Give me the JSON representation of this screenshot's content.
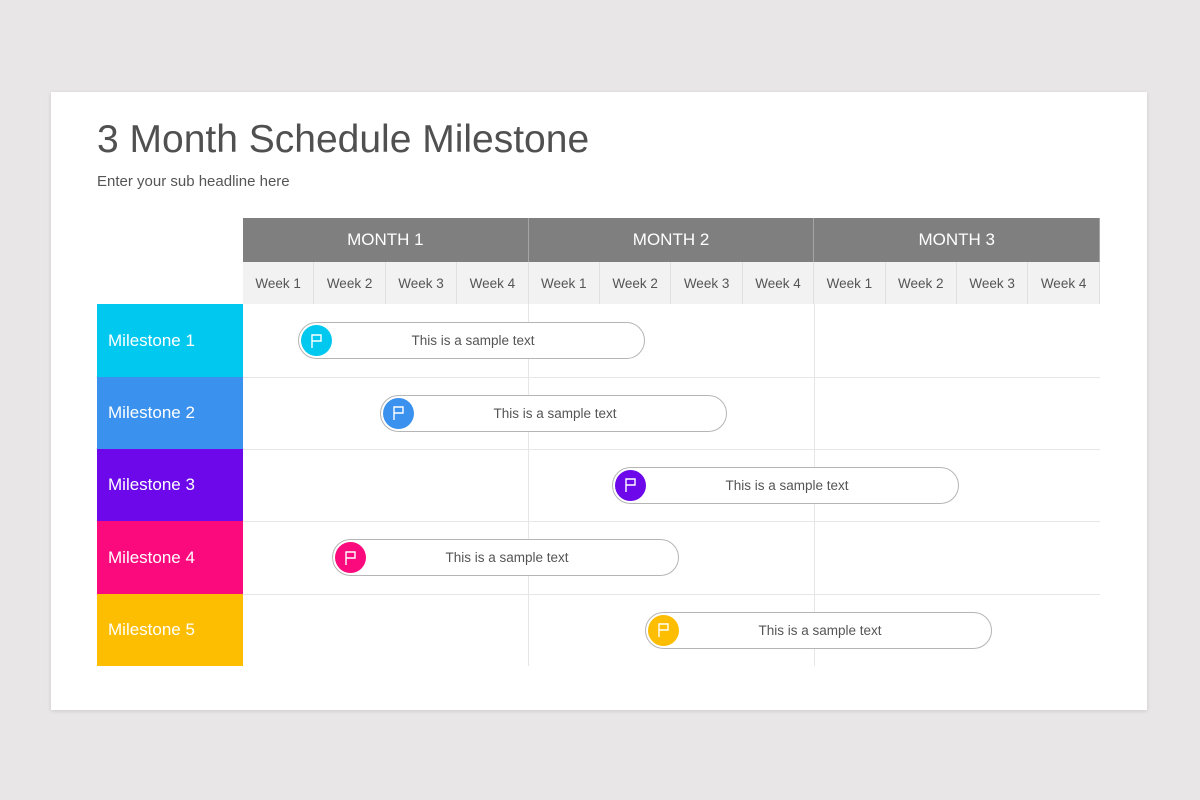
{
  "title": "3 Month Schedule Milestone",
  "subtitle": "Enter your sub headline here",
  "months": [
    "MONTH 1",
    "MONTH 2",
    "MONTH 3"
  ],
  "weeks": [
    "Week 1",
    "Week 2",
    "Week 3",
    "Week 4",
    "Week 1",
    "Week 2",
    "Week 3",
    "Week 4",
    "Week 1",
    "Week 2",
    "Week 3",
    "Week 4"
  ],
  "milestones": [
    {
      "label": "Milestone 1",
      "color": "#00c8ee",
      "text": "This is a sample text",
      "icon": "flag-icon"
    },
    {
      "label": "Milestone 2",
      "color": "#3a92ee",
      "text": "This is a sample text",
      "icon": "flag-icon"
    },
    {
      "label": "Milestone 3",
      "color": "#6c08ea",
      "text": "This is a sample text",
      "icon": "flag-icon"
    },
    {
      "label": "Milestone 4",
      "color": "#fb0a7e",
      "text": "This is a sample text",
      "icon": "flag-icon"
    },
    {
      "label": "Milestone 5",
      "color": "#fdbd00",
      "text": "This is a sample text",
      "icon": "flag-icon"
    }
  ]
}
